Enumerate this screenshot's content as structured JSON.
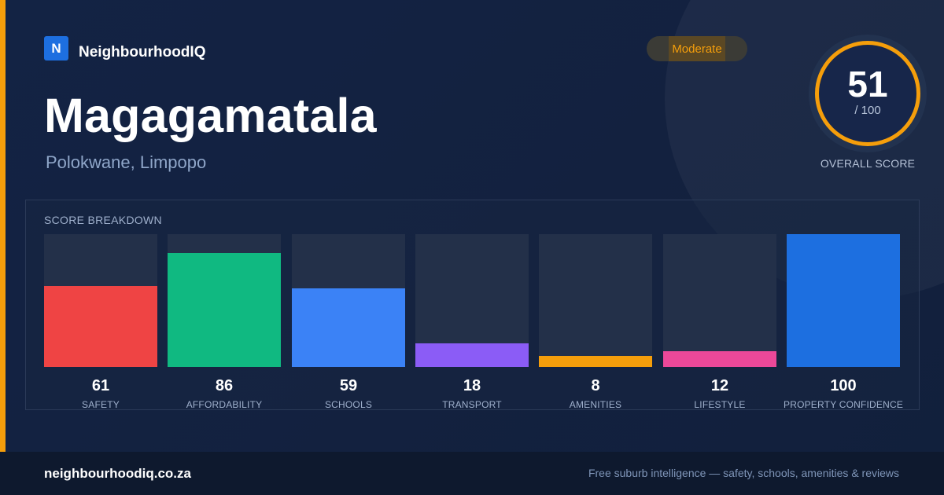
{
  "brand": {
    "logo_letter": "N",
    "name": "NeighbourhoodIQ"
  },
  "suburb": {
    "name": "Magagamatala",
    "location": "Polokwane, Limpopo"
  },
  "rating": {
    "label": "Moderate",
    "color": "#f59e0b"
  },
  "overall": {
    "score": "51",
    "max": "/ 100",
    "caption": "OVERALL SCORE"
  },
  "breakdown": {
    "heading": "SCORE BREAKDOWN",
    "max": 100,
    "items": [
      {
        "value": 61,
        "label": "SAFETY",
        "color": "#ef4444"
      },
      {
        "value": 86,
        "label": "AFFORDABILITY",
        "color": "#10b981"
      },
      {
        "value": 59,
        "label": "SCHOOLS",
        "color": "#3b82f6"
      },
      {
        "value": 18,
        "label": "TRANSPORT",
        "color": "#8b5cf6"
      },
      {
        "value": 8,
        "label": "AMENITIES",
        "color": "#f59e0b"
      },
      {
        "value": 12,
        "label": "LIFESTYLE",
        "color": "#ec4899"
      },
      {
        "value": 100,
        "label": "PROPERTY CONFIDENCE",
        "color": "#1d6fe0"
      }
    ]
  },
  "footer": {
    "domain": "neighbourhoodiq.co.za",
    "tagline": "Free suburb intelligence — safety, schools, amenities & reviews"
  }
}
